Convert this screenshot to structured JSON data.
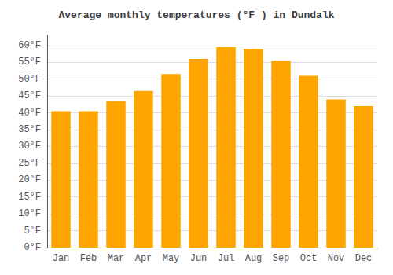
{
  "chart_data": {
    "type": "bar",
    "title": "Average monthly temperatures (°F ) in Dundalk",
    "categories": [
      "Jan",
      "Feb",
      "Mar",
      "Apr",
      "May",
      "Jun",
      "Jul",
      "Aug",
      "Sep",
      "Oct",
      "Nov",
      "Dec"
    ],
    "values": [
      40.5,
      40.5,
      43.5,
      46.5,
      51.5,
      56.0,
      59.5,
      59.0,
      55.5,
      51.0,
      44.0,
      42.0
    ],
    "color": "#FFA500",
    "ylim": [
      0,
      63
    ],
    "yticks": [
      {
        "value": 0,
        "label": "0°F"
      },
      {
        "value": 5,
        "label": "5°F"
      },
      {
        "value": 10,
        "label": "10°F"
      },
      {
        "value": 15,
        "label": "15°F"
      },
      {
        "value": 20,
        "label": "20°F"
      },
      {
        "value": 25,
        "label": "25°F"
      },
      {
        "value": 30,
        "label": "30°F"
      },
      {
        "value": 35,
        "label": "35°F"
      },
      {
        "value": 40,
        "label": "40°F"
      },
      {
        "value": 45,
        "label": "45°F"
      },
      {
        "value": 50,
        "label": "50°F"
      },
      {
        "value": 55,
        "label": "55°F"
      },
      {
        "value": 60,
        "label": "60°F"
      }
    ],
    "grid": true
  }
}
